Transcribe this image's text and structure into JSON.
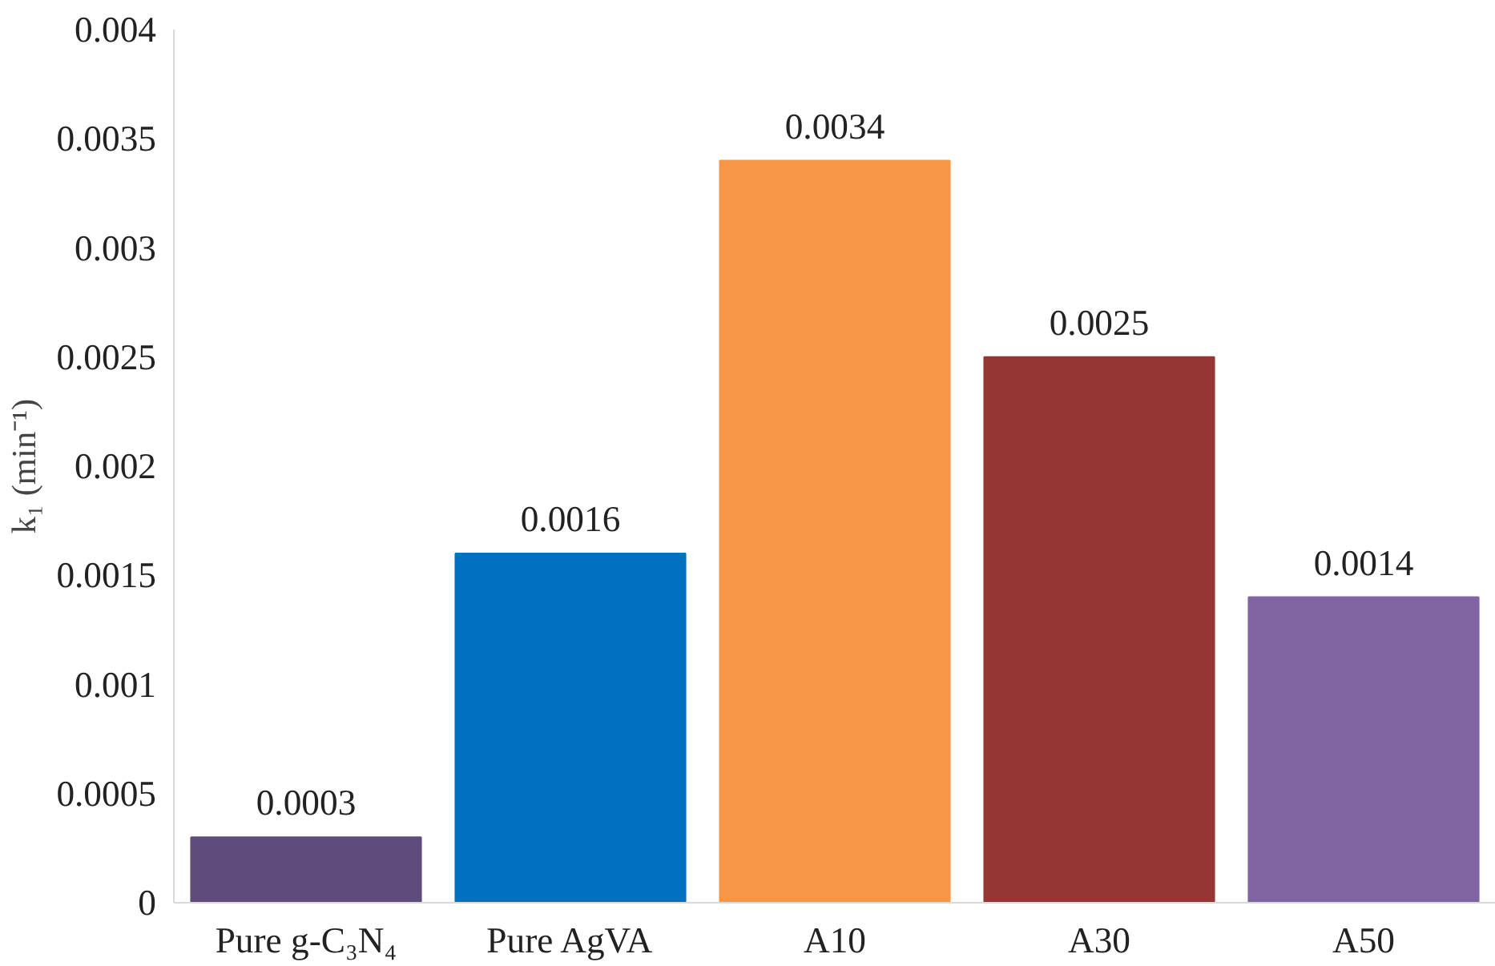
{
  "chart_data": {
    "type": "bar",
    "ylabel": "k₁ (min⁻¹)",
    "categories": [
      "Pure g-C₃N₄",
      "Pure AgVA",
      "A10",
      "A30",
      "A50"
    ],
    "values": [
      0.0003,
      0.0016,
      0.0034,
      0.0025,
      0.0014
    ],
    "colors": [
      "#5f4b7c",
      "#0070c0",
      "#f79646",
      "#943634",
      "#8064a2"
    ],
    "ylim": [
      0,
      0.004
    ],
    "yticks": [
      0,
      0.0005,
      0.001,
      0.0015,
      0.002,
      0.0025,
      0.003,
      0.0035,
      0.004
    ],
    "data_labels": true
  }
}
